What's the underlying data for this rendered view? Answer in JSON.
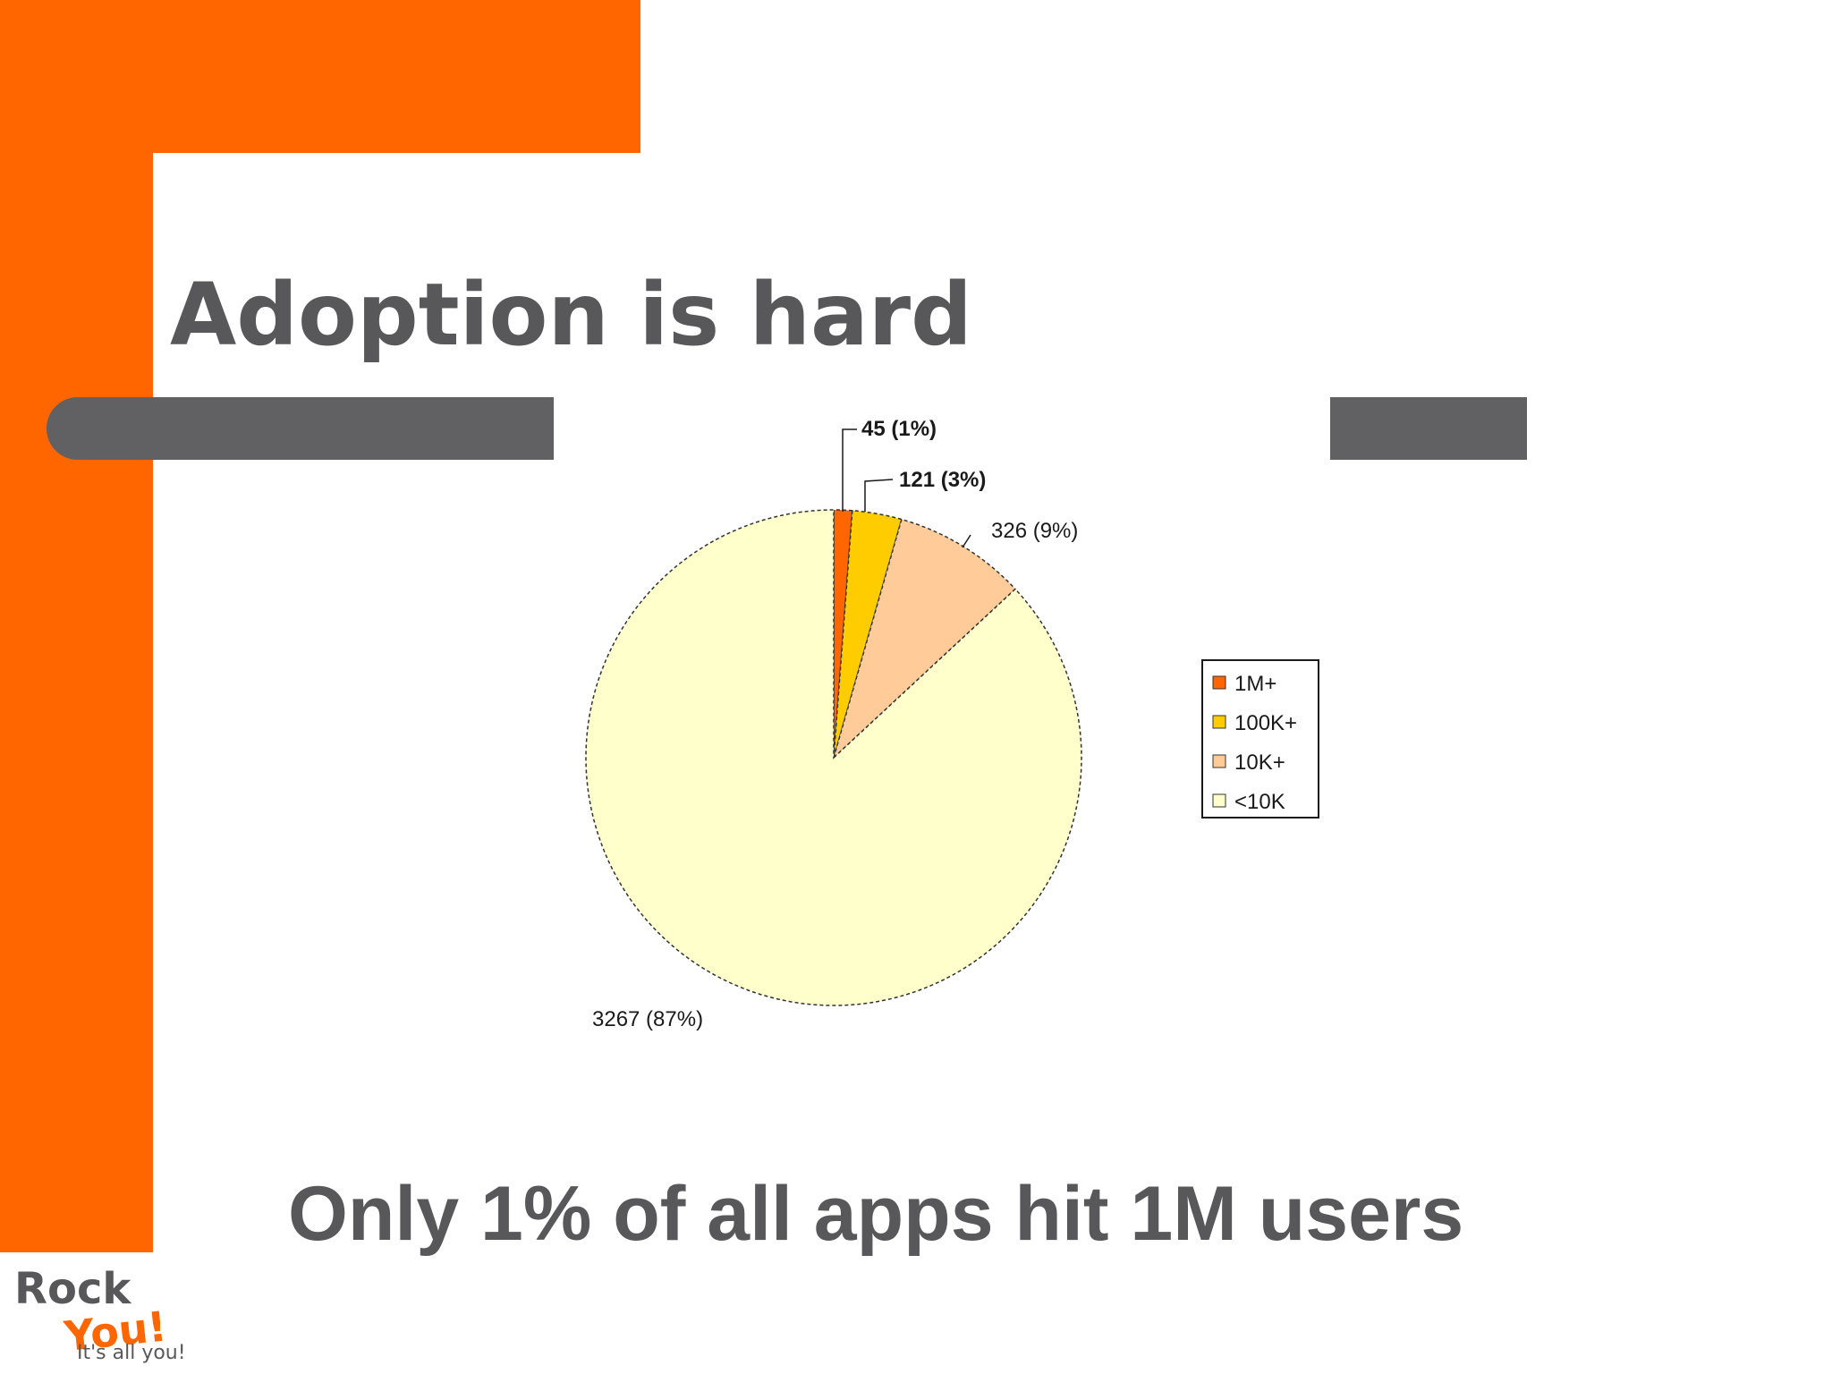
{
  "slide": {
    "title": "Adoption is hard",
    "caption": "Only 1% of all apps hit 1M users"
  },
  "logo": {
    "word_top": "Rock",
    "word_bottom": "You!",
    "tagline": "It's all you!"
  },
  "colors": {
    "accent_orange": "#ff6600",
    "bar_gray": "#616063",
    "text_gray": "#58585a"
  },
  "chart_data": {
    "type": "pie",
    "title": "",
    "categories": [
      "1M+",
      "100K+",
      "10K+",
      "<10K"
    ],
    "values": [
      45,
      121,
      326,
      3267
    ],
    "percent_labels": [
      "1%",
      "3%",
      "9%",
      "87%"
    ],
    "slice_labels": [
      "45 (1%)",
      "121 (3%)",
      "326 (9%)",
      "3267 (87%)"
    ],
    "colors": [
      "#ff6600",
      "#ffcc00",
      "#ffcc99",
      "#ffffcc"
    ],
    "legend": {
      "placement": "right",
      "entries": [
        "1M+",
        "100K+",
        "10K+",
        "<10K"
      ]
    }
  }
}
